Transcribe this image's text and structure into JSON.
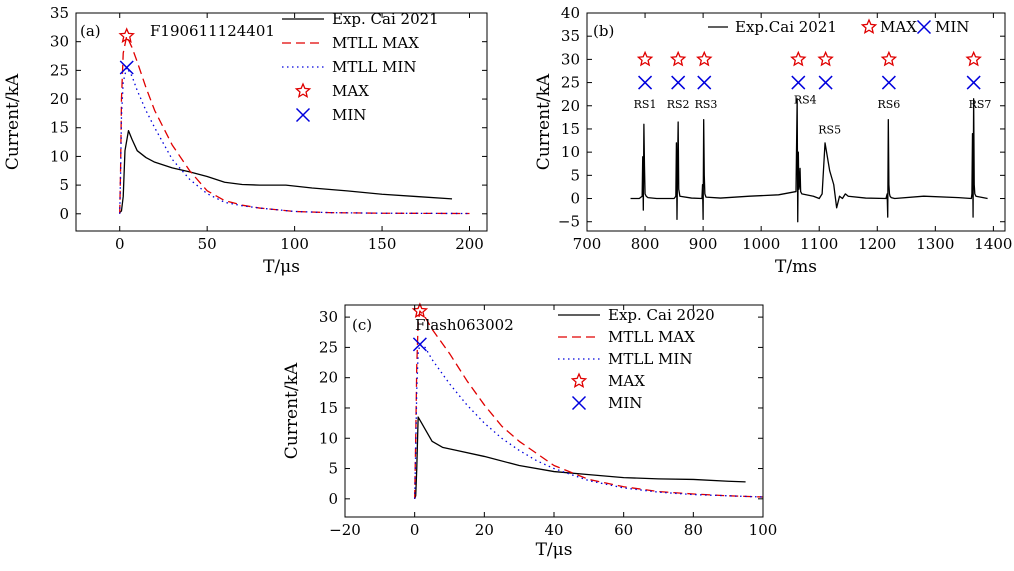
{
  "chart_data": [
    {
      "type": "line",
      "panel_label": "(a)",
      "annotation": "F190611124401",
      "xlabel": "T/μs",
      "ylabel": "Current/kA",
      "xlim": [
        -25,
        210
      ],
      "ylim": [
        -3,
        35
      ],
      "xticks": [
        0,
        50,
        100,
        150,
        200
      ],
      "yticks": [
        0,
        5,
        10,
        15,
        20,
        25,
        30,
        35
      ],
      "legend_position": "top-right",
      "series": [
        {
          "name": "Exp. Cai 2021",
          "color": "#000000",
          "style": "solid",
          "x": [
            0,
            1,
            2,
            3,
            5,
            7,
            10,
            15,
            20,
            30,
            40,
            50,
            60,
            70,
            80,
            95,
            110,
            130,
            150,
            170,
            190
          ],
          "y": [
            0.2,
            0.5,
            3,
            11,
            14.5,
            13,
            11,
            9.8,
            9,
            8,
            7.3,
            6.5,
            5.5,
            5.1,
            5,
            5,
            4.5,
            4,
            3.4,
            3,
            2.6
          ]
        },
        {
          "name": "MTLL MAX",
          "color": "#e00000",
          "style": "dashed",
          "x": [
            0,
            0.5,
            1,
            2,
            4,
            7,
            10,
            15,
            20,
            30,
            40,
            50,
            60,
            70,
            80,
            100,
            120,
            150,
            200
          ],
          "y": [
            0,
            8,
            20,
            28,
            31,
            29,
            26.5,
            22,
            18,
            12,
            7.5,
            4,
            2.3,
            1.5,
            1,
            0.4,
            0.2,
            0.1,
            0.05
          ]
        },
        {
          "name": "MTLL MIN",
          "color": "#0000dd",
          "style": "dotted",
          "x": [
            0,
            0.5,
            1,
            2,
            4,
            7,
            10,
            15,
            20,
            30,
            40,
            50,
            60,
            70,
            80,
            100,
            120,
            150,
            200
          ],
          "y": [
            0,
            7,
            17,
            23,
            25.5,
            24,
            21.5,
            18,
            15,
            9.5,
            6,
            3.5,
            2,
            1.4,
            1,
            0.4,
            0.2,
            0.1,
            0.05
          ]
        }
      ],
      "markers": [
        {
          "name": "MAX",
          "symbol": "star",
          "color": "#e00000",
          "points": [
            [
              4,
              31
            ]
          ]
        },
        {
          "name": "MIN",
          "symbol": "x",
          "color": "#0000dd",
          "points": [
            [
              4,
              25.5
            ]
          ]
        }
      ]
    },
    {
      "type": "line",
      "panel_label": "(b)",
      "xlabel": "T/ms",
      "ylabel": "Current/kA",
      "xlim": [
        700,
        1420
      ],
      "ylim": [
        -7,
        40
      ],
      "xticks": [
        700,
        800,
        900,
        1000,
        1100,
        1200,
        1300,
        1400
      ],
      "yticks": [
        -5,
        0,
        5,
        10,
        15,
        20,
        25,
        30,
        35,
        40
      ],
      "legend_position": "top",
      "series": [
        {
          "name": "Exp.Cai 2021",
          "color": "#000000",
          "style": "solid",
          "x": [
            775,
            790,
            795,
            796,
            797,
            798,
            799,
            800,
            802,
            805,
            820,
            850,
            853,
            854,
            855,
            856,
            857,
            858,
            860,
            880,
            898,
            899,
            900,
            901,
            902,
            903,
            905,
            930,
            980,
            1030,
            1060,
            1062,
            1063,
            1064,
            1065,
            1066,
            1067,
            1068,
            1070,
            1090,
            1100,
            1105,
            1110,
            1114,
            1118,
            1125,
            1130,
            1132,
            1135,
            1140,
            1145,
            1150,
            1180,
            1215,
            1217,
            1218,
            1219,
            1220,
            1221,
            1222,
            1224,
            1230,
            1280,
            1340,
            1362,
            1363,
            1364,
            1365,
            1366,
            1367,
            1368,
            1370,
            1390
          ],
          "y": [
            0,
            0,
            0.5,
            9,
            -2.5,
            16,
            7,
            1,
            0.5,
            0.2,
            0,
            0,
            0.5,
            12,
            -4.5,
            7,
            16.5,
            2,
            0.5,
            0.1,
            0,
            3,
            -4.5,
            17,
            5,
            1,
            0.3,
            0.1,
            0.5,
            0.8,
            1.5,
            21.5,
            -5,
            10,
            2,
            3,
            6.5,
            1.5,
            1,
            0.5,
            0,
            1,
            12,
            9,
            6,
            3,
            -2,
            -1,
            0.5,
            0,
            1,
            0.5,
            0.1,
            0,
            1,
            -4,
            17,
            3,
            1,
            0.5,
            0.2,
            0,
            0.5,
            0.2,
            0,
            1,
            14,
            -4,
            21.5,
            3,
            1,
            0.5,
            0
          ]
        }
      ],
      "markers": [
        {
          "name": "MAX",
          "symbol": "star",
          "color": "#e00000",
          "points": [
            [
              800,
              30
            ],
            [
              857,
              30
            ],
            [
              902,
              30
            ],
            [
              1064,
              30
            ],
            [
              1111,
              30
            ],
            [
              1220,
              30
            ],
            [
              1366,
              30
            ]
          ]
        },
        {
          "name": "MIN",
          "symbol": "x",
          "color": "#0000dd",
          "points": [
            [
              800,
              25
            ],
            [
              857,
              25
            ],
            [
              902,
              25
            ],
            [
              1064,
              25
            ],
            [
              1111,
              25
            ],
            [
              1220,
              25
            ],
            [
              1366,
              25
            ]
          ]
        }
      ],
      "annotations": [
        {
          "text": "RS1",
          "x": 800,
          "y": 19.5
        },
        {
          "text": "RS2",
          "x": 857,
          "y": 19.5
        },
        {
          "text": "RS3",
          "x": 905,
          "y": 19.5
        },
        {
          "text": "RS4",
          "x": 1076,
          "y": 20.5
        },
        {
          "text": "RS5",
          "x": 1118,
          "y": 14
        },
        {
          "text": "RS6",
          "x": 1220,
          "y": 19.5
        },
        {
          "text": "RS7",
          "x": 1377,
          "y": 19.5
        }
      ]
    },
    {
      "type": "line",
      "panel_label": "(c)",
      "annotation": "Flash063002",
      "xlabel": "T/μs",
      "ylabel": "Current/kA",
      "xlim": [
        -20,
        100
      ],
      "ylim": [
        -3,
        32
      ],
      "xticks": [
        -20,
        0,
        20,
        40,
        60,
        80,
        100
      ],
      "yticks": [
        0,
        5,
        10,
        15,
        20,
        25,
        30
      ],
      "legend_position": "top-right",
      "series": [
        {
          "name": "Exp. Cai 2020",
          "color": "#000000",
          "style": "solid",
          "x": [
            0,
            0.3,
            0.6,
            1,
            1.5,
            2,
            3,
            5,
            8,
            12,
            20,
            30,
            40,
            50,
            60,
            70,
            80,
            90,
            95
          ],
          "y": [
            0,
            0.5,
            5,
            13.5,
            13,
            12.5,
            11.5,
            9.5,
            8.5,
            8,
            7,
            5.5,
            4.5,
            4,
            3.5,
            3.3,
            3.2,
            2.9,
            2.8
          ]
        },
        {
          "name": "MTLL MAX",
          "color": "#e00000",
          "style": "dashed",
          "x": [
            0,
            0.3,
            0.6,
            1,
            1.5,
            3,
            5,
            10,
            15,
            20,
            25,
            30,
            35,
            40,
            50,
            60,
            70,
            80,
            90,
            100
          ],
          "y": [
            0,
            10,
            22,
            29,
            31,
            30,
            28,
            24,
            19.5,
            15.5,
            12,
            9.5,
            7.5,
            5.5,
            3.2,
            2,
            1.2,
            0.8,
            0.5,
            0.3
          ]
        },
        {
          "name": "MTLL MIN",
          "color": "#0000dd",
          "style": "dotted",
          "x": [
            0,
            0.3,
            0.6,
            1,
            1.5,
            3,
            5,
            10,
            15,
            20,
            25,
            30,
            35,
            40,
            50,
            60,
            70,
            80,
            90,
            100
          ],
          "y": [
            0,
            8,
            18,
            24,
            25.5,
            25,
            23,
            19,
            15.5,
            12.5,
            10,
            8,
            6.3,
            5,
            3,
            1.8,
            1.1,
            0.7,
            0.5,
            0.3
          ]
        }
      ],
      "markers": [
        {
          "name": "MAX",
          "symbol": "star",
          "color": "#e00000",
          "points": [
            [
              1.5,
              31
            ]
          ]
        },
        {
          "name": "MIN",
          "symbol": "x",
          "color": "#0000dd",
          "points": [
            [
              1.5,
              25.5
            ]
          ]
        }
      ]
    }
  ]
}
